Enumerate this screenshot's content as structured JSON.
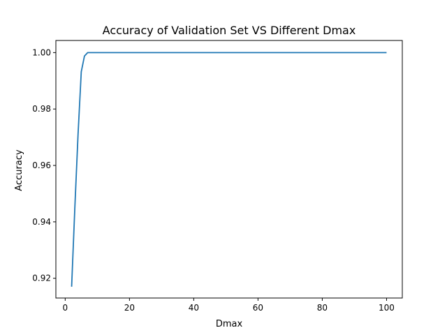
{
  "chart_data": {
    "type": "line",
    "title": "Accuracy of Validation Set VS Different Dmax",
    "xlabel": "Dmax",
    "ylabel": "Accuracy",
    "xlim": [
      -2.9,
      104.9
    ],
    "ylim": [
      0.913,
      1.0043
    ],
    "x_ticks": [
      0,
      20,
      40,
      60,
      80,
      100
    ],
    "y_ticks": [
      0.92,
      0.94,
      0.96,
      0.98,
      1.0
    ],
    "x_tick_labels": [
      "0",
      "20",
      "40",
      "60",
      "80",
      "100"
    ],
    "y_tick_labels": [
      "0.92",
      "0.94",
      "0.96",
      "0.98",
      "1.00"
    ],
    "grid": false,
    "legend": "none",
    "series": [
      {
        "color": "#1f77b4",
        "x": [
          2,
          3,
          4,
          5,
          6,
          7,
          8,
          10,
          20,
          30,
          40,
          50,
          60,
          70,
          80,
          90,
          100
        ],
        "y": [
          0.917,
          0.945,
          0.971,
          0.9932,
          0.9988,
          1.0,
          1.0,
          1.0,
          1.0,
          1.0,
          1.0,
          1.0,
          1.0,
          1.0,
          1.0,
          1.0,
          1.0
        ]
      }
    ]
  }
}
